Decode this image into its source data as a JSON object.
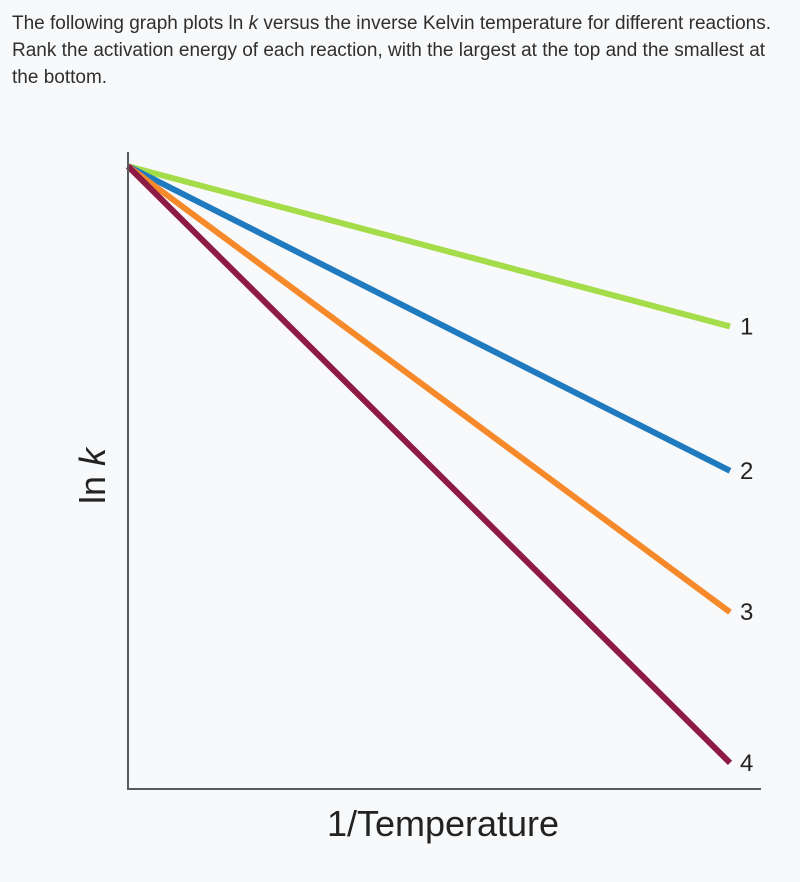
{
  "question": {
    "before": "The following graph plots ln ",
    "var": "k",
    "after": " versus the inverse Kelvin temperature for different reactions. Rank the activation energy of each reaction, with the largest at the top and the smallest at the bottom."
  },
  "chart_data": {
    "type": "line",
    "xlabel": "1/Temperature",
    "ylabel_prefix": "ln ",
    "ylabel_var": "k",
    "grid": false,
    "legend": "none",
    "x": [
      0,
      1
    ],
    "xlim": [
      0,
      1
    ],
    "ylim": [
      0,
      1
    ],
    "series": [
      {
        "name": "1",
        "color": "#a4dc4a",
        "values": [
          0.99,
          0.735
        ]
      },
      {
        "name": "2",
        "color": "#1f7abf",
        "values": [
          0.99,
          0.505
        ]
      },
      {
        "name": "3",
        "color": "#f68a2a",
        "values": [
          0.99,
          0.28
        ]
      },
      {
        "name": "4",
        "color": "#8e1b43",
        "values": [
          0.99,
          0.04
        ]
      }
    ]
  }
}
